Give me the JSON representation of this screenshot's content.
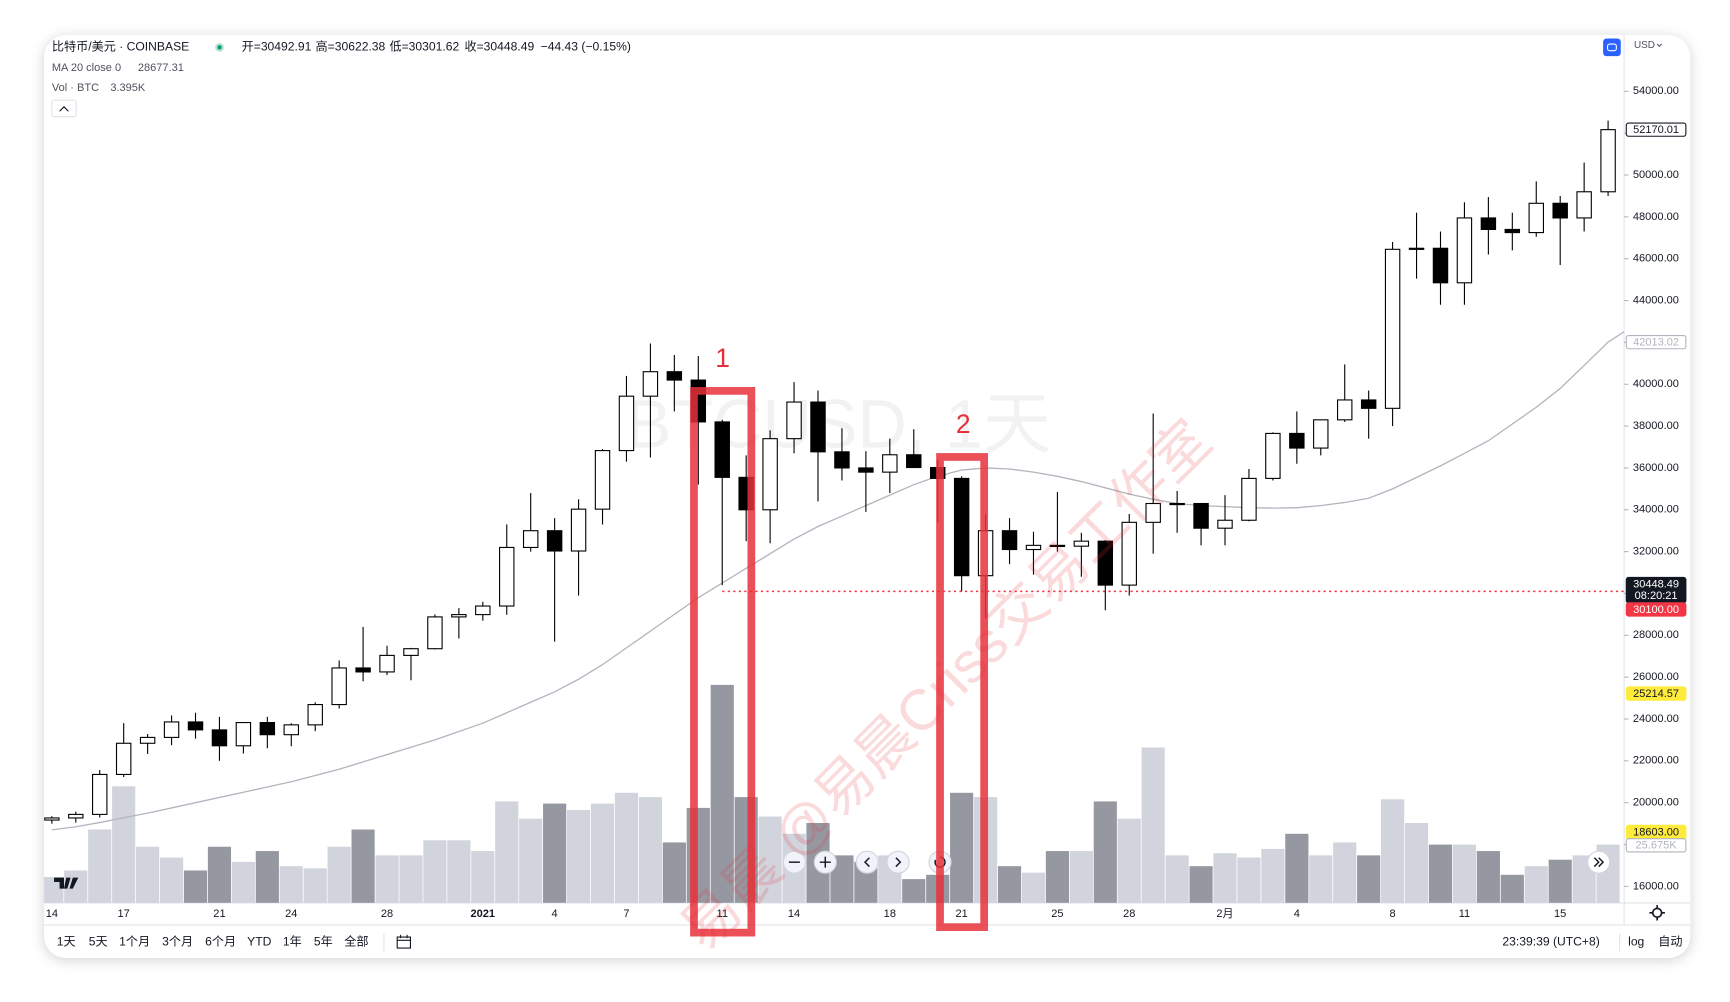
{
  "header": {
    "symbol": "比特币/美元 · COINBASE",
    "ohlc": [
      "开=30492.91",
      "高=30622.38",
      "低=30301.62",
      "收=30448.49",
      "−44.43 (−0.15%)"
    ],
    "volume_title": "Vol · BTC",
    "volume_value": "3.395K",
    "ma_value": "28677.31",
    "currency": "USD"
  },
  "chart_data": {
    "type": "candlestick",
    "watermark": "BTCUSD, 1天",
    "overlay_watermark": "易晨 @易晨Criss交易工作室",
    "categories": [
      "14",
      null,
      null,
      "17",
      null,
      null,
      null,
      "21",
      null,
      null,
      "24",
      null,
      null,
      null,
      "28",
      null,
      null,
      null,
      "2021",
      null,
      null,
      "4",
      null,
      null,
      "7",
      null,
      null,
      null,
      "11",
      null,
      null,
      "14",
      null,
      null,
      null,
      "18",
      null,
      null,
      "21",
      null,
      null,
      null,
      "25",
      null,
      null,
      "28",
      null,
      null,
      null,
      "2月",
      null,
      null,
      "4",
      null,
      null,
      null,
      "8",
      null,
      null,
      "11",
      null,
      null,
      null,
      "15",
      null,
      null
    ],
    "open": [
      19170,
      19270,
      19440,
      21350,
      22840,
      23120,
      23860,
      23480,
      22720,
      23830,
      23250,
      23720,
      24690,
      26440,
      26250,
      27040,
      27360,
      28880,
      28990,
      29400,
      32200,
      33000,
      32030,
      34030,
      36830,
      39430,
      40600,
      40200,
      38200,
      35550,
      34000,
      37400,
      39150,
      36770,
      36000,
      35800,
      36630,
      36020,
      35500,
      30850,
      33000,
      32100,
      32300,
      32260,
      32500,
      30400,
      33400,
      34300,
      34300,
      33120,
      33500,
      35500,
      37650,
      36950,
      38300,
      39250,
      38850,
      46450,
      46500,
      44850,
      47950,
      47400,
      47250,
      48650,
      47950,
      49200
    ],
    "high": [
      19350,
      19570,
      21560,
      23800,
      23280,
      24170,
      24300,
      24100,
      23850,
      24100,
      23800,
      24800,
      26800,
      28400,
      27500,
      27400,
      29000,
      29300,
      29600,
      33300,
      34800,
      33600,
      34500,
      36900,
      40400,
      41950,
      41400,
      41350,
      38300,
      36600,
      37800,
      40100,
      39700,
      37900,
      36800,
      37400,
      37850,
      36400,
      35600,
      33800,
      33600,
      32950,
      34850,
      32900,
      32550,
      33800,
      38600,
      34900,
      34300,
      34700,
      35950,
      37700,
      38700,
      38300,
      40950,
      39700,
      46800,
      48200,
      47300,
      48700,
      48950,
      48200,
      49700,
      49000,
      50600,
      52600
    ],
    "low": [
      19000,
      19050,
      19290,
      21230,
      22330,
      22750,
      23060,
      22000,
      22350,
      22600,
      22700,
      23420,
      24500,
      25800,
      26100,
      25850,
      27320,
      27850,
      28700,
      28980,
      32000,
      27700,
      29900,
      33300,
      36300,
      36500,
      38700,
      35200,
      30400,
      32500,
      32400,
      36700,
      34400,
      35400,
      33900,
      34800,
      36000,
      33400,
      30100,
      28800,
      31400,
      30900,
      32000,
      30800,
      29200,
      29900,
      31900,
      32900,
      32300,
      32300,
      33450,
      35400,
      36200,
      36600,
      38200,
      37400,
      38000,
      45050,
      43800,
      43800,
      46200,
      46400,
      47050,
      45700,
      47300,
      49000
    ],
    "close": [
      19270,
      19440,
      21350,
      22840,
      23120,
      23860,
      23480,
      22720,
      23830,
      23250,
      23720,
      24690,
      26440,
      26250,
      27040,
      27360,
      28880,
      28990,
      29400,
      32200,
      33000,
      32030,
      34030,
      36830,
      39430,
      40600,
      40200,
      38200,
      35550,
      34000,
      37400,
      39150,
      36770,
      36000,
      35800,
      36630,
      36020,
      35500,
      30850,
      33000,
      32100,
      32300,
      32260,
      32500,
      30400,
      33400,
      34300,
      34300,
      33120,
      33500,
      35500,
      37650,
      36950,
      38300,
      39250,
      38850,
      46450,
      46500,
      44850,
      47950,
      47400,
      47250,
      48650,
      47950,
      49200,
      52170.01
    ],
    "volume": [
      11,
      14,
      33,
      53,
      25,
      20,
      14,
      25,
      18,
      23,
      16,
      15,
      25,
      33,
      21,
      21,
      28,
      28,
      23,
      46,
      38,
      45,
      42,
      45,
      50,
      48,
      27,
      43,
      100,
      48,
      39,
      31,
      36,
      21,
      18,
      21,
      10,
      12,
      50,
      48,
      16,
      13,
      23,
      23,
      46,
      38,
      71,
      21,
      16,
      22,
      20,
      24,
      31,
      21,
      27,
      21,
      47,
      36,
      26,
      26,
      23,
      12,
      16,
      19,
      21,
      26
    ],
    "ma": {
      "name": "MA 20 close 0",
      "color": "#b2b5be",
      "values": [
        18700,
        18850,
        19050,
        19280,
        19500,
        19750,
        20000,
        20250,
        20500,
        20750,
        21000,
        21300,
        21600,
        21950,
        22300,
        22650,
        23000,
        23400,
        23800,
        24300,
        24800,
        25300,
        25900,
        26600,
        27400,
        28200,
        29000,
        29800,
        30500,
        31200,
        31900,
        32600,
        33200,
        33700,
        34200,
        34700,
        35200,
        35600,
        35900,
        36000,
        35950,
        35800,
        35600,
        35350,
        35050,
        34750,
        34500,
        34300,
        34200,
        34150,
        34100,
        34080,
        34100,
        34200,
        34350,
        34550,
        35000,
        35550,
        36100,
        36700,
        37300,
        38100,
        38900,
        39800,
        40900,
        42013
      ]
    },
    "up_color": "#ffffff",
    "down_color": "#000000",
    "up_volume_color": "#d1d4dc",
    "down_volume_color": "#9598a1",
    "ylim": [
      15210,
      56630
    ],
    "yticks": [
      {
        "value": 16000,
        "label": "16000.00"
      },
      {
        "value": 18000,
        "label": "18000.00"
      },
      {
        "value": 20000,
        "label": "20000.00"
      },
      {
        "value": 22000,
        "label": "22000.00"
      },
      {
        "value": 24000,
        "label": "24000.00"
      },
      {
        "value": 26000,
        "label": "26000.00"
      },
      {
        "value": 28000,
        "label": "28000.00"
      },
      {
        "value": 30000,
        "label": "30000.00"
      },
      {
        "value": 32000,
        "label": "32000.00"
      },
      {
        "value": 34000,
        "label": "34000.00"
      },
      {
        "value": 36000,
        "label": "36000.00"
      },
      {
        "value": 38000,
        "label": "38000.00"
      },
      {
        "value": 40000,
        "label": "40000.00"
      },
      {
        "value": 42000,
        "label": "42000.00"
      },
      {
        "value": 44000,
        "label": "44000.00"
      },
      {
        "value": 46000,
        "label": "46000.00"
      },
      {
        "value": 48000,
        "label": "48000.00"
      },
      {
        "value": 50000,
        "label": "50000.00"
      },
      {
        "value": 52000,
        "label": "52000.00"
      },
      {
        "value": 54000,
        "label": "54000.00"
      }
    ],
    "grid": false,
    "price_line": {
      "value": 30100,
      "color": "#f23645"
    },
    "price_labels": [
      {
        "price": 52170.01,
        "background": "#ffffff",
        "border": "#131722",
        "text": "#131722"
      },
      {
        "price": 42013.02,
        "background": "#ffffff",
        "border": "#b2b5be",
        "text": "#b2b5be"
      },
      {
        "price": 30448.49,
        "countdown": "08:20:21",
        "background": "#131722",
        "border": "#131722",
        "text": "#ffffff"
      },
      {
        "price": {
          "value": 30100,
          "label": "30100.00"
        },
        "background": "#f23645",
        "border": "#f23645",
        "text": "#ffffff"
      },
      {
        "price": 25214.57,
        "background": "#ffeb3b",
        "border": "#ffeb3b",
        "text": "#131722"
      },
      {
        "price": {
          "value": 18603,
          "label": "18603.00"
        },
        "background": "#ffeb3b",
        "border": "#ffeb3b",
        "text": "#131722"
      }
    ],
    "volume_label": {
      "price": {
        "value": 25.675,
        "label": "25.675K"
      },
      "background": "#ffffff",
      "border": "#b2b5be",
      "text": "#b2b5be"
    },
    "annotations": [
      "1",
      "2"
    ],
    "annotation_color": "#e8303a"
  },
  "toolbar": {
    "ranges": [
      "1天",
      "5天",
      "1个月",
      "3个月",
      "6个月",
      "YTD",
      "1年",
      "5年",
      "全部"
    ],
    "clock": "23:39:39 (UTC+8)",
    "log": "log",
    "auto": "自动"
  }
}
